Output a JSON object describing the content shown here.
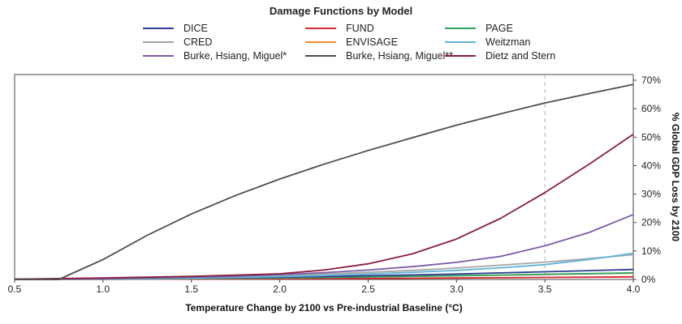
{
  "chart_data": {
    "type": "line",
    "title": "Damage Functions by Model",
    "xlabel": "Temperature Change by 2100 vs Pre-industrial Baseline (°C)",
    "ylabel": "% Global GDP Loss by 2100",
    "xlim": [
      0.5,
      4.0
    ],
    "ylim": [
      0,
      72
    ],
    "x_ticks": [
      "0.5",
      "1.0",
      "1.5",
      "2.0",
      "2.5",
      "3.0",
      "3.5",
      "4.0"
    ],
    "y_ticks": [
      "0%",
      "10%",
      "20%",
      "30%",
      "40%",
      "50%",
      "60%",
      "70%"
    ],
    "y_tick_values": [
      0,
      10,
      20,
      30,
      40,
      50,
      60,
      70
    ],
    "reference_line_x": 3.5,
    "grid": false,
    "legend_position": "top",
    "x": [
      0.5,
      0.75,
      1.0,
      1.25,
      1.5,
      1.75,
      2.0,
      2.25,
      2.5,
      2.75,
      3.0,
      3.25,
      3.5,
      3.75,
      4.0
    ],
    "series": [
      {
        "name": "DICE",
        "color": "#2b3d8f",
        "values": [
          0.05,
          0.1,
          0.2,
          0.3,
          0.45,
          0.6,
          0.8,
          1.05,
          1.3,
          1.6,
          1.9,
          2.3,
          2.7,
          3.1,
          3.5
        ]
      },
      {
        "name": "FUND",
        "color": "#d7262c",
        "values": [
          0,
          0.02,
          0.05,
          0.1,
          0.15,
          0.2,
          0.25,
          0.3,
          0.35,
          0.42,
          0.5,
          0.6,
          0.7,
          0.8,
          0.9
        ]
      },
      {
        "name": "PAGE",
        "color": "#2ca25f",
        "values": [
          0.02,
          0.06,
          0.12,
          0.2,
          0.3,
          0.42,
          0.55,
          0.7,
          0.9,
          1.1,
          1.3,
          1.55,
          1.8,
          2.05,
          2.3
        ]
      },
      {
        "name": "CRED",
        "color": "#a6a6a6",
        "values": [
          0.05,
          0.12,
          0.25,
          0.45,
          0.7,
          1.0,
          1.4,
          1.9,
          2.5,
          3.2,
          4.0,
          5.0,
          6.1,
          7.3,
          8.7
        ]
      },
      {
        "name": "ENVISAGE",
        "color": "#f28e2b",
        "values": [
          0.02,
          0.05,
          0.1,
          0.18,
          0.28,
          0.4,
          0.55,
          0.72,
          0.9,
          1.1,
          1.3,
          1.5,
          1.75,
          2.0,
          2.2
        ]
      },
      {
        "name": "Weitzman",
        "color": "#5fb3d9",
        "values": [
          0.03,
          0.08,
          0.16,
          0.3,
          0.48,
          0.7,
          1.0,
          1.4,
          1.9,
          2.5,
          3.2,
          4.1,
          5.2,
          7.0,
          9.2
        ]
      },
      {
        "name": "Burke, Hsiang, Miguel*",
        "color": "#7b5aa6",
        "values": [
          0.05,
          0.15,
          0.3,
          0.5,
          0.8,
          1.2,
          1.7,
          2.4,
          3.3,
          4.5,
          6.0,
          8.1,
          11.8,
          16.5,
          22.8
        ]
      },
      {
        "name": "Burke, Hsiang, Miguel**",
        "color": "#4d4d4d",
        "values": [
          0,
          0,
          7.0,
          15.5,
          23.0,
          29.5,
          35.3,
          40.5,
          45.3,
          49.8,
          54.2,
          58.2,
          62.0,
          65.3,
          68.5
        ]
      },
      {
        "name": "Dietz and Stern",
        "color": "#8b1e3f",
        "values": [
          0.1,
          0.3,
          0.5,
          0.8,
          1.1,
          1.5,
          2.0,
          3.3,
          5.5,
          9.0,
          14.2,
          21.5,
          30.5,
          40.5,
          51.0
        ]
      }
    ]
  }
}
